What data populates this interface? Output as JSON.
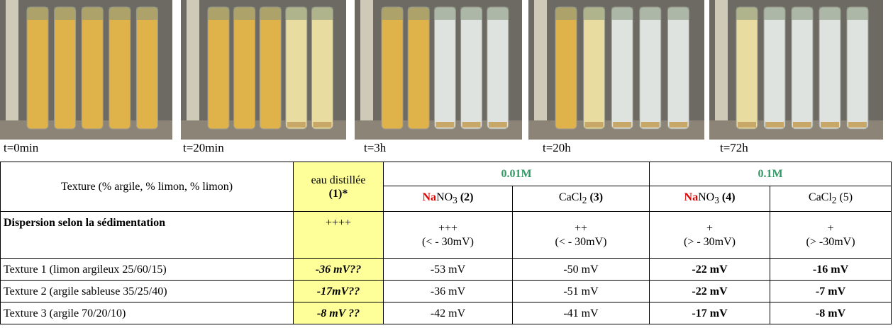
{
  "photos": [
    {
      "caption": "t=0min"
    },
    {
      "caption": "t=20min"
    },
    {
      "caption": "t=3h"
    },
    {
      "caption": "t=20h"
    },
    {
      "caption": "t=72h"
    }
  ],
  "table": {
    "header": {
      "texture": "Texture (% argile, % limon, % limon)",
      "control": {
        "name": "eau distillée",
        "code": "(1)*"
      },
      "groups": [
        "0.01M",
        "0.1M"
      ],
      "salts": [
        {
          "red": "Na",
          "formula": "NO",
          "sub": "3",
          "code": "(2)"
        },
        {
          "formula": "CaCl",
          "sub": "2",
          "code": "(3)"
        },
        {
          "red": "Na",
          "formula": "NO",
          "sub": "3",
          "code": "(4)"
        },
        {
          "formula": "CaCl",
          "sub": "2",
          "code": "(5)"
        }
      ]
    },
    "dispersion": {
      "label": "Dispersion selon la sédimentation",
      "values": [
        "++++",
        "+++",
        "++",
        "+",
        "+"
      ],
      "notes": [
        "(< - 30mV)",
        "(< - 30mV)",
        "(> - 30mV)",
        "(> -30mV)"
      ]
    },
    "rows": [
      [
        "Texture 1 (limon argileux 25/60/15)",
        "-36 mV??",
        "-53 mV",
        "-50 mV",
        "-22 mV",
        "-16 mV"
      ],
      [
        "Texture 2 (argile sableuse 35/25/40)",
        "-17mV??",
        "-36 mV",
        "-51 mV",
        "-22 mV",
        "-7 mV"
      ],
      [
        "Texture 3 (argile 70/20/10)",
        "-8 mV ??",
        "-42 mV",
        "-41 mV",
        "-17 mV",
        "-8 mV"
      ]
    ]
  }
}
